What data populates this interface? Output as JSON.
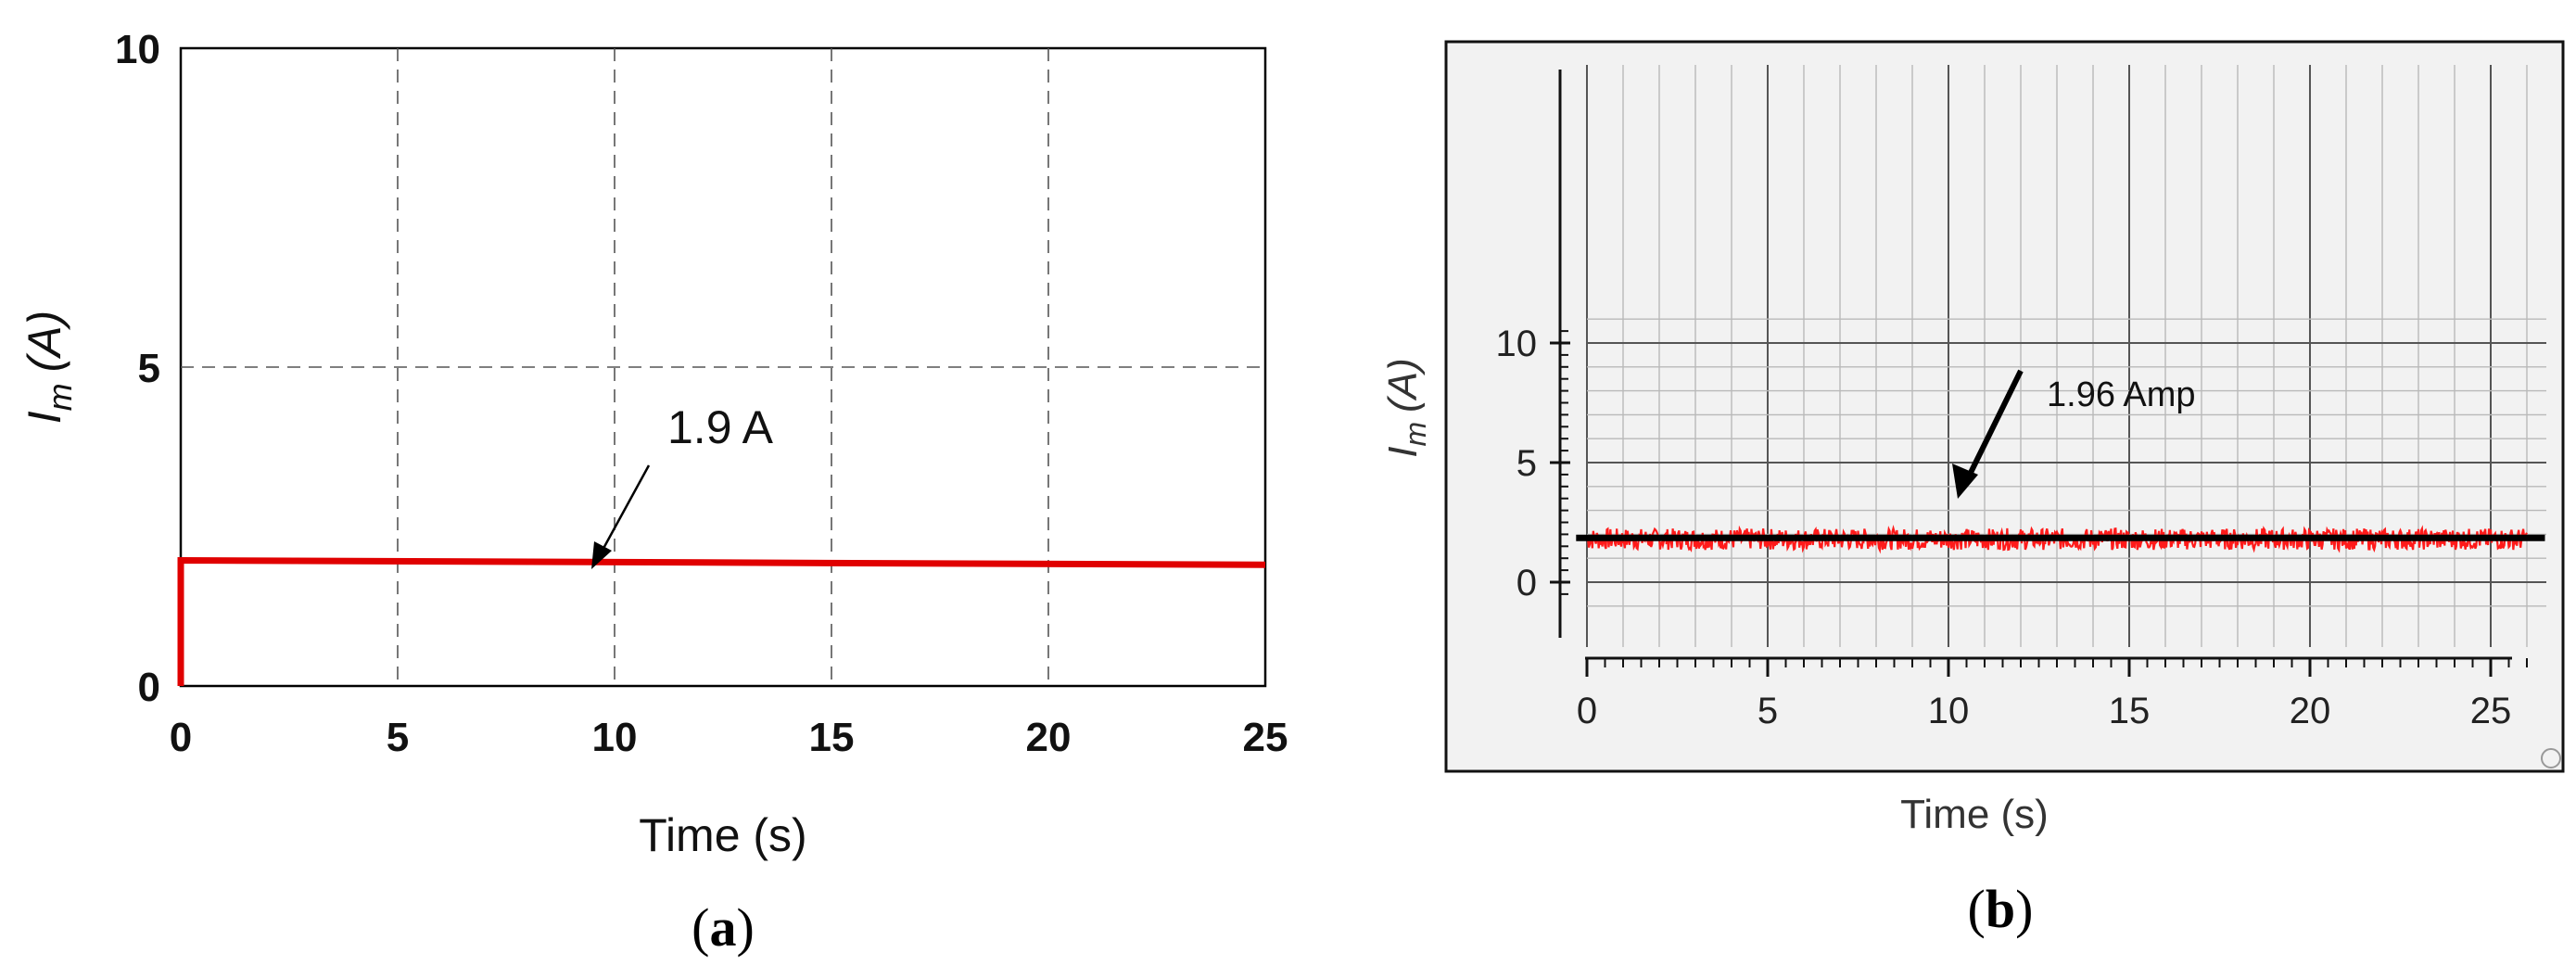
{
  "chart_data": [
    {
      "id": "a",
      "type": "line",
      "caption_open": "(",
      "caption_letter": "a",
      "caption_close": ")",
      "xlabel": "Time (s)",
      "ylabel_symbol": "I",
      "ylabel_subscript": "m",
      "ylabel_unit": "(A)",
      "xlim": [
        0,
        25
      ],
      "ylim": [
        0,
        10
      ],
      "xticks": [
        0,
        5,
        10,
        15,
        20,
        25
      ],
      "yticks": [
        0,
        5,
        10
      ],
      "grid": true,
      "series": [
        {
          "color": "#e00000",
          "x": [
            0,
            0,
            0.05,
            25
          ],
          "y": [
            0,
            1.97,
            1.97,
            1.9
          ]
        }
      ],
      "annotations": [
        {
          "text": "1.9 A",
          "x": 9.5,
          "y": 1.9
        }
      ]
    },
    {
      "id": "b",
      "type": "line",
      "caption_open": "(",
      "caption_letter": "b",
      "caption_close": ")",
      "xlabel": "Time (s)",
      "ylabel_symbol": "I",
      "ylabel_subscript": "m",
      "ylabel_unit": "(A)",
      "xlim": [
        0,
        26.5
      ],
      "ylim": [
        -1,
        11
      ],
      "xticks": [
        0,
        5,
        10,
        15,
        20,
        25
      ],
      "yticks": [
        0,
        5,
        10
      ],
      "grid": true,
      "series": [
        {
          "color": "#ff1a1a",
          "x_range": [
            0,
            26
          ],
          "mean": 1.8,
          "ripple": 0.45
        },
        {
          "color": "#000000",
          "x": [
            -0.3,
            26.5
          ],
          "y": [
            1.85,
            1.85
          ]
        }
      ],
      "annotations": [
        {
          "text": "1.96 Amp",
          "x": 10.5,
          "y": 1.9
        }
      ]
    }
  ]
}
